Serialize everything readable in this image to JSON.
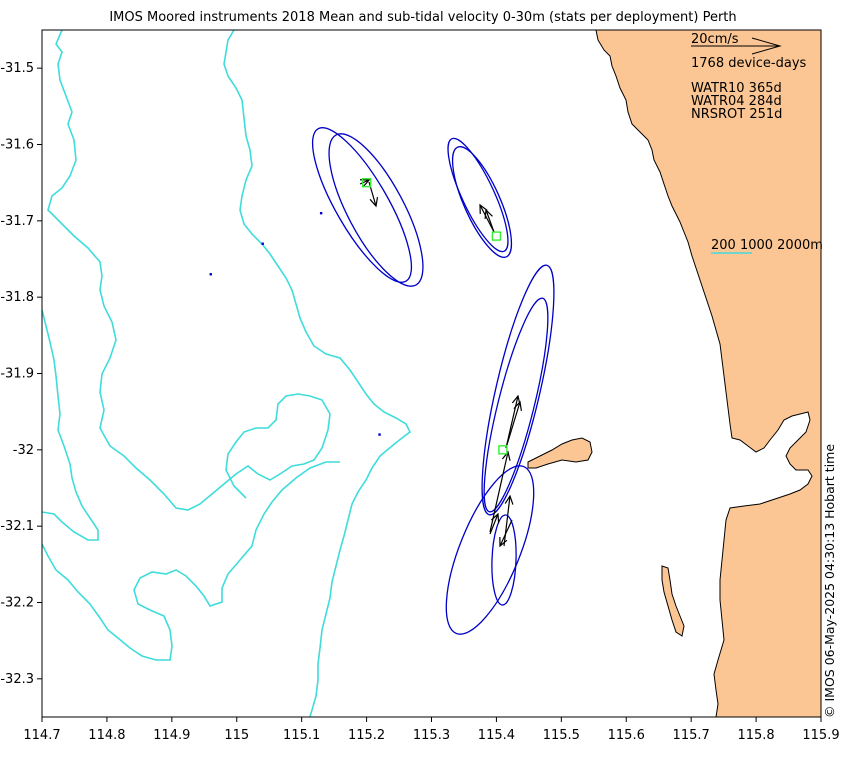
{
  "title": "IMOS Moored instruments 2018 Mean and sub-tidal velocity 0-30m (stats per deployment) Perth",
  "copyright": "© IMOS 06-May-2025 04:30:13 Hobart time",
  "colors": {
    "land": "#fbc693",
    "bathymetry": "#3fdcdc",
    "ellipse": "#0000c8",
    "site_marker": "#33ee33",
    "arrow": "#000000"
  },
  "scale_arrow": {
    "label": "20cm/s",
    "speed_cm_s": 20
  },
  "device_days": "1768 device-days",
  "deployments": [
    {
      "name": "WATR10",
      "days": "365d",
      "label": "WATR10 365d"
    },
    {
      "name": "WATR04",
      "days": "284d",
      "label": "WATR04 284d"
    },
    {
      "name": "NRSROT",
      "days": "251d",
      "label": "NRSROT 251d"
    }
  ],
  "isobath_label": "200 1000 2000m",
  "chart_data": {
    "type": "map",
    "xlim": [
      114.7,
      115.9
    ],
    "ylim": [
      -32.35,
      -31.45
    ],
    "x_ticks": [
      "114.7",
      "114.8",
      "114.9",
      "115",
      "115.1",
      "115.2",
      "115.3",
      "115.4",
      "115.5",
      "115.6",
      "115.7",
      "115.8",
      "115.9"
    ],
    "y_ticks": [
      "-31.5",
      "-31.6",
      "-31.7",
      "-31.8",
      "-31.9",
      "-32",
      "-32.1",
      "-32.2",
      "-32.3"
    ],
    "sites": [
      {
        "name": "NRSROT",
        "lon": 115.41,
        "lat": -32.0
      },
      {
        "name": "WATR04",
        "lon": 115.2,
        "lat": -31.65
      },
      {
        "name": "WATR10",
        "lon": 115.4,
        "lat": -31.72
      }
    ],
    "small_markers": [
      {
        "lon": 114.96,
        "lat": -31.77
      },
      {
        "lon": 115.04,
        "lat": -31.73
      },
      {
        "lon": 115.13,
        "lat": -31.69
      },
      {
        "lon": 115.22,
        "lat": -31.98
      }
    ]
  }
}
